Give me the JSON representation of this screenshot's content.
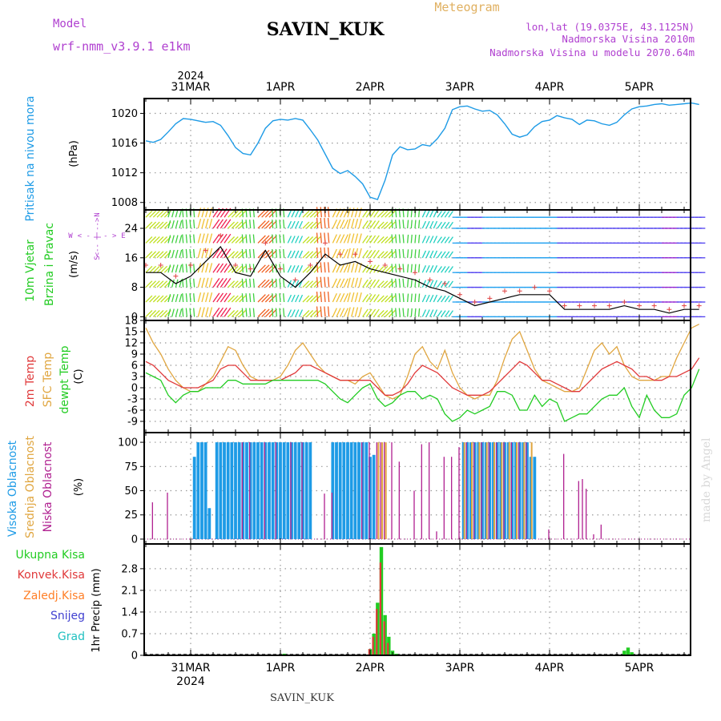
{
  "header": {
    "model_label": "Model",
    "model_value": "wrf-nmm_v3.9.1  e1km",
    "station": "SAVIN_KUK",
    "meteogram": "Meteogram",
    "lonlat": "lon,lat (19.0375E, 43.1125N)",
    "elevation": "Nadmorska Visina 2010m",
    "model_elevation": "Nadmorska Visina u modelu 2070.64m",
    "footer_station": "SAVIN_KUK",
    "watermark": "made by Angel",
    "year": "2024"
  },
  "days": [
    "31MAR",
    "1APR",
    "2APR",
    "3APR",
    "4APR",
    "5APR"
  ],
  "panels": {
    "pressure": {
      "label": "Pritisak na nivou mora",
      "unit": "(hPa)"
    },
    "wind": {
      "label1": "10m Vjetar",
      "label2": "Brzina i Pravac",
      "unit": "(m/s)",
      "rose": {
        "n": "N",
        "s": "S",
        "e": "E",
        "w": "W"
      }
    },
    "temp": {
      "label1": "2m Temp",
      "label2": "SFC Temp",
      "label3": "dewpt Temp",
      "unit": "(C)"
    },
    "cloud": {
      "label1": "Visoka Oblacnost",
      "label2": "Srednja Oblacnost",
      "label3": "Niska Oblacnost",
      "unit": "(%)"
    },
    "precip": {
      "labels": [
        "Ukupna Kisa",
        "Konvek.Kisa",
        "Zaledj.Kisa",
        "Snijeg",
        "Grad"
      ],
      "unit": "1hr Precip (mm)"
    }
  },
  "colors": {
    "pressure": "#1e9be6",
    "t2m": "#e0393a",
    "sfc": "#e0a640",
    "dewpt": "#22cc22",
    "cloud_high": "#1e9be6",
    "cloud_mid": "#e0a640",
    "cloud_low": "#b02090",
    "total": "#22cc22",
    "conv": "#e0393a",
    "frz": "#ff7f27",
    "snow": "#4040d0",
    "hail": "#20c0c0",
    "model": "#b040d0",
    "meteogram": "#e0b060"
  },
  "chart_data": [
    {
      "type": "line",
      "title": "Pritisak na nivou mora",
      "ylabel": "(hPa)",
      "ylim": [
        1007,
        1022
      ],
      "yticks": [
        1008,
        1012,
        1016,
        1020
      ],
      "x": [
        0,
        2,
        4,
        6,
        8,
        10,
        12,
        14,
        16,
        18,
        20,
        22,
        24,
        26,
        28,
        30,
        32,
        34,
        36,
        38,
        40,
        42,
        44,
        46,
        48,
        50,
        52,
        54,
        56,
        58,
        60,
        62,
        64,
        66,
        68,
        70,
        72,
        74,
        76,
        78,
        80,
        82,
        84,
        86,
        88,
        90,
        92,
        94,
        96,
        98,
        100,
        102,
        104,
        106,
        108,
        110,
        112,
        114,
        116,
        118,
        120,
        122,
        124,
        126,
        128,
        130,
        132,
        134,
        136,
        138,
        140,
        142,
        144,
        146,
        148
      ],
      "series": [
        {
          "values": [
            1016.3,
            1016.1,
            1016.5,
            1017.5,
            1018.6,
            1019.3,
            1019.2,
            1019.0,
            1018.8,
            1018.9,
            1018.4,
            1017.0,
            1015.4,
            1014.6,
            1014.4,
            1016.0,
            1018.0,
            1019.0,
            1019.2,
            1019.1,
            1019.3,
            1019.1,
            1017.8,
            1016.4,
            1014.5,
            1012.6,
            1011.9,
            1012.3,
            1011.5,
            1010.5,
            1008.7,
            1008.4,
            1011.0,
            1014.4,
            1015.5,
            1015.1,
            1015.2,
            1015.8,
            1015.6,
            1016.6,
            1018.0,
            1020.5,
            1020.9,
            1021.0,
            1020.6,
            1020.3,
            1020.4,
            1019.8,
            1018.6,
            1017.2,
            1016.8,
            1017.1,
            1018.2,
            1018.9,
            1019.1,
            1019.7,
            1019.4,
            1019.2,
            1018.5,
            1019.1,
            1019.0,
            1018.6,
            1018.4,
            1018.8,
            1019.8,
            1020.6,
            1020.9,
            1021.0,
            1021.2,
            1021.3,
            1021.1,
            1021.2,
            1021.3,
            1021.4,
            1021.2
          ]
        }
      ]
    },
    {
      "type": "line",
      "title": "10m Vjetar Brzina i Pravac",
      "ylabel": "(m/s)",
      "ylim": [
        -1,
        29
      ],
      "yticks": [
        0,
        8,
        16,
        24
      ],
      "x": [
        0,
        4,
        8,
        12,
        16,
        20,
        24,
        28,
        32,
        36,
        40,
        44,
        48,
        52,
        56,
        60,
        64,
        68,
        72,
        76,
        80,
        84,
        88,
        92,
        96,
        100,
        104,
        108,
        112,
        116,
        120,
        124,
        128,
        132,
        136,
        140,
        144,
        148
      ],
      "series": [
        {
          "name": "speed",
          "values": [
            12,
            12,
            9,
            11,
            15,
            19,
            12,
            11,
            18,
            11,
            8,
            12,
            17,
            14,
            15,
            13,
            12,
            11,
            10,
            8,
            7,
            5,
            3,
            4,
            5,
            6,
            6,
            6,
            2,
            2,
            2,
            2,
            3,
            2,
            2,
            1,
            2,
            2
          ]
        },
        {
          "name": "gust",
          "values": [
            14,
            14,
            11,
            14,
            18,
            22,
            14,
            13,
            20,
            13,
            10,
            14,
            20,
            17,
            17,
            15,
            14,
            13,
            12,
            10,
            9,
            6,
            4,
            5,
            7,
            7,
            8,
            7,
            3,
            3,
            3,
            3,
            4,
            3,
            3,
            2,
            3,
            3
          ]
        }
      ]
    },
    {
      "type": "line",
      "title": "2m Temp / SFC Temp / dewpt Temp",
      "ylabel": "(C)",
      "ylim": [
        -12,
        18
      ],
      "yticks": [
        -9,
        -6,
        -3,
        0,
        3,
        6,
        9,
        12,
        15,
        18
      ],
      "x": [
        0,
        2,
        4,
        6,
        8,
        10,
        12,
        14,
        16,
        18,
        20,
        22,
        24,
        26,
        28,
        30,
        32,
        34,
        36,
        38,
        40,
        42,
        44,
        46,
        48,
        50,
        52,
        54,
        56,
        58,
        60,
        62,
        64,
        66,
        68,
        70,
        72,
        74,
        76,
        78,
        80,
        82,
        84,
        86,
        88,
        90,
        92,
        94,
        96,
        98,
        100,
        102,
        104,
        106,
        108,
        110,
        112,
        114,
        116,
        118,
        120,
        122,
        124,
        126,
        128,
        130,
        132,
        134,
        136,
        138,
        140,
        142,
        144,
        146,
        148
      ],
      "series": [
        {
          "name": "2m Temp",
          "values": [
            7,
            6,
            4,
            2,
            1,
            0,
            0,
            0,
            1,
            2,
            5,
            6,
            6,
            4,
            2,
            2,
            2,
            2,
            2,
            3,
            4,
            6,
            6,
            5,
            4,
            3,
            2,
            2,
            2,
            2,
            2,
            0,
            -2,
            -2,
            -1,
            1,
            4,
            6,
            5,
            4,
            2,
            0,
            -1,
            -2,
            -2,
            -2,
            -1,
            1,
            3,
            5,
            7,
            6,
            4,
            2,
            2,
            1,
            0,
            -1,
            -1,
            1,
            3,
            5,
            6,
            7,
            6,
            5,
            3,
            3,
            2,
            2,
            3,
            3,
            4,
            5,
            8
          ]
        },
        {
          "name": "SFC Temp",
          "values": [
            16,
            12,
            9,
            5,
            2,
            0,
            -1,
            -1,
            1,
            3,
            7,
            11,
            10,
            6,
            3,
            2,
            2,
            2,
            3,
            6,
            10,
            12,
            9,
            6,
            4,
            3,
            2,
            2,
            1,
            3,
            4,
            1,
            -2,
            -3,
            -2,
            3,
            9,
            11,
            7,
            5,
            10,
            4,
            0,
            -2,
            -3,
            -2,
            -2,
            2,
            8,
            13,
            15,
            10,
            5,
            2,
            1,
            0,
            -1,
            -1,
            0,
            5,
            10,
            12,
            9,
            11,
            6,
            3,
            2,
            2,
            2,
            3,
            3,
            8,
            12,
            16,
            17
          ]
        },
        {
          "name": "dewpt Temp",
          "values": [
            4,
            3,
            2,
            -2,
            -4,
            -2,
            -1,
            -1,
            0,
            0,
            0,
            2,
            2,
            1,
            1,
            1,
            1,
            2,
            2,
            2,
            2,
            2,
            2,
            2,
            1,
            -1,
            -3,
            -4,
            -2,
            0,
            1,
            -3,
            -5,
            -4,
            -2,
            -1,
            -1,
            -3,
            -2,
            -3,
            -7,
            -9,
            -8,
            -6,
            -7,
            -6,
            -5,
            -1,
            -1,
            -2,
            -6,
            -6,
            -2,
            -5,
            -3,
            -4,
            -9,
            -8,
            -7,
            -7,
            -5,
            -3,
            -2,
            -2,
            0,
            -5,
            -8,
            -2,
            -6,
            -8,
            -8,
            -7,
            -2,
            0,
            5
          ]
        }
      ]
    },
    {
      "type": "bar",
      "title": "Visoka / Srednja / Niska Oblacnost",
      "ylabel": "(%)",
      "ylim": [
        -5,
        110
      ],
      "yticks": [
        0,
        25,
        50,
        75,
        100
      ],
      "series": [
        {
          "name": "Visoka Oblacnost",
          "x": [
            13,
            14,
            15,
            16,
            17,
            19,
            20,
            21,
            22,
            23,
            24,
            25,
            26,
            27,
            28,
            29,
            30,
            31,
            32,
            33,
            34,
            35,
            36,
            37,
            38,
            39,
            40,
            41,
            42,
            43,
            44,
            50,
            51,
            52,
            53,
            54,
            55,
            56,
            57,
            58,
            59,
            60,
            61,
            85,
            86,
            87,
            88,
            89,
            90,
            91,
            92,
            93,
            94,
            95,
            96,
            97,
            98,
            99,
            100,
            101,
            102,
            103,
            104
          ],
          "values": [
            85,
            100,
            100,
            100,
            32,
            100,
            100,
            100,
            100,
            100,
            100,
            100,
            100,
            100,
            100,
            100,
            100,
            100,
            100,
            100,
            100,
            100,
            100,
            100,
            100,
            100,
            100,
            100,
            100,
            100,
            100,
            100,
            100,
            100,
            100,
            100,
            100,
            100,
            100,
            100,
            100,
            85,
            87,
            100,
            100,
            100,
            100,
            100,
            100,
            100,
            100,
            100,
            100,
            100,
            100,
            100,
            100,
            100,
            100,
            100,
            100,
            85,
            85
          ]
        },
        {
          "name": "Srednja Oblacnost",
          "x": [
            62,
            63,
            64,
            85,
            87,
            89,
            91,
            93,
            95,
            97,
            99,
            101,
            103
          ],
          "values": [
            100,
            100,
            100,
            100,
            100,
            100,
            100,
            100,
            100,
            100,
            100,
            100,
            100
          ]
        },
        {
          "name": "Niska Oblacnost",
          "x": [
            2,
            6,
            26,
            28,
            32,
            35,
            39,
            42,
            48,
            50,
            58,
            60,
            62,
            63,
            64,
            66,
            68,
            72,
            74,
            76,
            78,
            80,
            82,
            84,
            86,
            88,
            90,
            92,
            94,
            96,
            98,
            100,
            102,
            108,
            112,
            116,
            117,
            118,
            120,
            122
          ],
          "values": [
            38,
            48,
            100,
            100,
            100,
            100,
            100,
            100,
            47,
            48,
            100,
            100,
            100,
            100,
            100,
            100,
            80,
            50,
            98,
            100,
            8,
            85,
            85,
            95,
            100,
            100,
            100,
            100,
            100,
            100,
            100,
            100,
            100,
            10,
            88,
            60,
            62,
            52,
            5,
            15
          ]
        }
      ]
    },
    {
      "type": "bar",
      "title": "1hr Precip",
      "ylabel": "1hr Precip (mm)",
      "ylim": [
        0,
        3.6
      ],
      "yticks": [
        0,
        0.7,
        1.4,
        2.1,
        2.8
      ],
      "series": [
        {
          "name": "Ukupna Kisa",
          "x": [
            37,
            60,
            61,
            62,
            63,
            64,
            65,
            66,
            67,
            128,
            129,
            130
          ],
          "values": [
            0.05,
            0.2,
            0.7,
            1.7,
            3.5,
            1.3,
            0.6,
            0.15,
            0.05,
            0.15,
            0.25,
            0.1
          ]
        },
        {
          "name": "Konvek.Kisa",
          "x": [
            60,
            61,
            62,
            63,
            64,
            65
          ],
          "values": [
            0.2,
            0.6,
            1.5,
            3.0,
            1.1,
            0.4
          ]
        }
      ]
    }
  ]
}
